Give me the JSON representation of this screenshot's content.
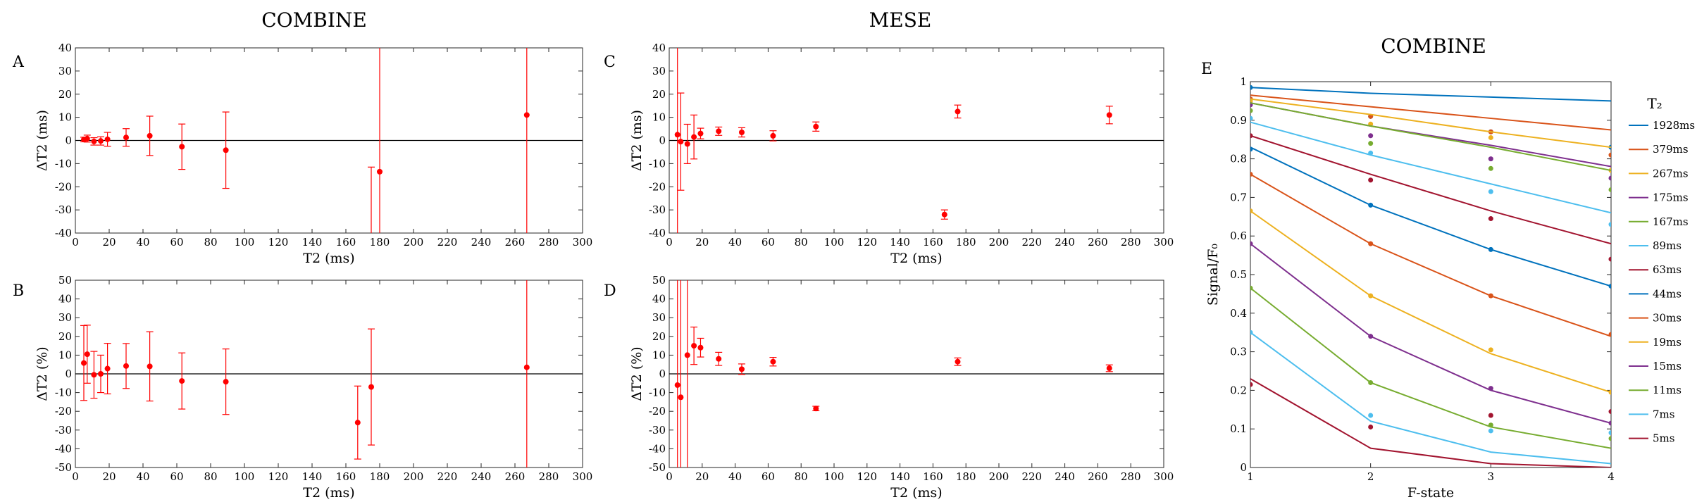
{
  "titles": {
    "left": "COMBINE",
    "middle": "MESE",
    "right": "COMBINE"
  },
  "chart_data": [
    {
      "id": "A",
      "letter": "A",
      "type": "scatter",
      "title": "",
      "xlabel": "T2 (ms)",
      "ylabel": "ΔT2 (ms)",
      "xlim": [
        0,
        300
      ],
      "ylim": [
        -40,
        40
      ],
      "xticks": [
        0,
        20,
        40,
        60,
        80,
        100,
        120,
        140,
        160,
        180,
        200,
        220,
        240,
        260,
        280,
        300
      ],
      "yticks": [
        -40,
        -30,
        -20,
        -10,
        0,
        10,
        20,
        30,
        40
      ],
      "zero_line": true,
      "grid": false,
      "color": "#ff0000",
      "points": [
        {
          "x": 5,
          "y": 0.4,
          "err": 1.0
        },
        {
          "x": 7,
          "y": 0.8,
          "err": 1.5
        },
        {
          "x": 11,
          "y": -0.4,
          "err": 1.6
        },
        {
          "x": 15,
          "y": -0.2,
          "err": 1.8
        },
        {
          "x": 19,
          "y": 0.5,
          "err": 3.0
        },
        {
          "x": 30,
          "y": 1.3,
          "err": 3.8
        },
        {
          "x": 44,
          "y": 2.0,
          "err": 8.5
        },
        {
          "x": 63,
          "y": -2.7,
          "err": 9.8
        },
        {
          "x": 89,
          "y": -4.2,
          "err": 16.5
        },
        {
          "x": 175,
          "y": null,
          "err_low": -40,
          "err_high": -11.5
        },
        {
          "x": 180,
          "y": -13.5,
          "err_low": -40,
          "err_high": 40
        },
        {
          "x": 267,
          "y": 11.0,
          "err_low": -40,
          "err_high": 40
        }
      ]
    },
    {
      "id": "B",
      "letter": "B",
      "type": "scatter",
      "title": "",
      "xlabel": "T2 (ms)",
      "ylabel": "ΔT2 (%)",
      "xlim": [
        0,
        300
      ],
      "ylim": [
        -50,
        50
      ],
      "xticks": [
        0,
        20,
        40,
        60,
        80,
        100,
        120,
        140,
        160,
        180,
        200,
        220,
        240,
        260,
        280,
        300
      ],
      "yticks": [
        -50,
        -40,
        -30,
        -20,
        -10,
        0,
        10,
        20,
        30,
        40,
        50
      ],
      "zero_line": true,
      "grid": false,
      "color": "#ff0000",
      "points": [
        {
          "x": 5,
          "y": 5.8,
          "err": 20.0
        },
        {
          "x": 7,
          "y": 10.5,
          "err": 15.5
        },
        {
          "x": 11,
          "y": -0.5,
          "err": 12.5
        },
        {
          "x": 15,
          "y": 0.0,
          "err": 10.0
        },
        {
          "x": 19,
          "y": 2.8,
          "err": 13.5
        },
        {
          "x": 30,
          "y": 4.2,
          "err": 12.0
        },
        {
          "x": 44,
          "y": 4.0,
          "err": 18.5
        },
        {
          "x": 63,
          "y": -3.8,
          "err": 15.0
        },
        {
          "x": 89,
          "y": -4.2,
          "err": 17.5
        },
        {
          "x": 167,
          "y": -26.0,
          "err": 19.5
        },
        {
          "x": 175,
          "y": -7.0,
          "err": 31.0
        },
        {
          "x": 267,
          "y": 3.5,
          "err_low": -50,
          "err_high": 50
        }
      ]
    },
    {
      "id": "C",
      "letter": "C",
      "type": "scatter",
      "title": "",
      "xlabel": "T2 (ms)",
      "ylabel": "ΔT2 (ms)",
      "xlim": [
        0,
        300
      ],
      "ylim": [
        -40,
        40
      ],
      "xticks": [
        0,
        20,
        40,
        60,
        80,
        100,
        120,
        140,
        160,
        180,
        200,
        220,
        240,
        260,
        280,
        300
      ],
      "yticks": [
        -40,
        -30,
        -20,
        -10,
        0,
        10,
        20,
        30,
        40
      ],
      "zero_line": true,
      "grid": false,
      "color": "#ff0000",
      "points": [
        {
          "x": 5,
          "y": 2.5,
          "err_low": -40,
          "err_high": 40
        },
        {
          "x": 7,
          "y": -0.5,
          "err": 21.0
        },
        {
          "x": 11,
          "y": -1.5,
          "err": 8.5
        },
        {
          "x": 15,
          "y": 1.5,
          "err": 9.5
        },
        {
          "x": 19,
          "y": 3.0,
          "err": 2.3
        },
        {
          "x": 30,
          "y": 4.0,
          "err": 1.8
        },
        {
          "x": 44,
          "y": 3.5,
          "err": 2.0
        },
        {
          "x": 63,
          "y": 2.0,
          "err": 2.2
        },
        {
          "x": 89,
          "y": 6.0,
          "err": 2.0
        },
        {
          "x": 167,
          "y": -32.0,
          "err": 2.0
        },
        {
          "x": 175,
          "y": 12.5,
          "err": 2.8
        },
        {
          "x": 267,
          "y": 11.0,
          "err": 3.8
        }
      ]
    },
    {
      "id": "D",
      "letter": "D",
      "type": "scatter",
      "title": "",
      "xlabel": "T2 (ms)",
      "ylabel": "ΔT2 (%)",
      "xlim": [
        0,
        300
      ],
      "ylim": [
        -50,
        50
      ],
      "xticks": [
        0,
        20,
        40,
        60,
        80,
        100,
        120,
        140,
        160,
        180,
        200,
        220,
        240,
        260,
        280,
        300
      ],
      "yticks": [
        -50,
        -40,
        -30,
        -20,
        -10,
        0,
        10,
        20,
        30,
        40,
        50
      ],
      "zero_line": true,
      "grid": false,
      "color": "#ff0000",
      "points": [
        {
          "x": 5,
          "y": -6.0,
          "err_low": -50,
          "err_high": 50
        },
        {
          "x": 7,
          "y": -12.5,
          "err_low": -50,
          "err_high": 50
        },
        {
          "x": 11,
          "y": 10.0,
          "err_low": -50,
          "err_high": 50
        },
        {
          "x": 15,
          "y": 15.0,
          "err": 10.0
        },
        {
          "x": 19,
          "y": 14.0,
          "err": 5.0
        },
        {
          "x": 30,
          "y": 8.0,
          "err": 3.5
        },
        {
          "x": 44,
          "y": 2.5,
          "err": 2.8
        },
        {
          "x": 63,
          "y": 6.5,
          "err": 2.3
        },
        {
          "x": 89,
          "y": -18.5,
          "err": 1.2
        },
        {
          "x": 175,
          "y": 6.5,
          "err": 2.0
        },
        {
          "x": 267,
          "y": 3.0,
          "err": 1.8
        }
      ]
    },
    {
      "id": "E",
      "letter": "E",
      "type": "line",
      "title": "",
      "xlabel": "F-state",
      "ylabel": "Signal/F₀",
      "xlim": [
        1,
        4
      ],
      "ylim": [
        0,
        1
      ],
      "xticks": [
        1,
        2,
        3,
        4
      ],
      "yticks": [
        0,
        0.1,
        0.2,
        0.3,
        0.4,
        0.5,
        0.6,
        0.7,
        0.8,
        0.9,
        1
      ],
      "legend_title": "T₂",
      "legend_position": "outside-right",
      "x": [
        1,
        2,
        3,
        4
      ],
      "series": [
        {
          "name": "1928ms",
          "color": "#0072bd",
          "line": [
            0.985,
            0.97,
            0.96,
            0.95
          ],
          "points": [
            0.985,
            0.91,
            0.87,
            0.83
          ]
        },
        {
          "name": "379ms",
          "color": "#d95319",
          "line": [
            0.965,
            0.935,
            0.905,
            0.875
          ],
          "points": [
            0.955,
            0.91,
            0.87,
            0.81
          ]
        },
        {
          "name": "267ms",
          "color": "#edb120",
          "line": [
            0.955,
            0.915,
            0.87,
            0.83
          ],
          "points": [
            0.95,
            0.89,
            0.855,
            0.77
          ]
        },
        {
          "name": "175ms",
          "color": "#7e2f8e",
          "line": [
            0.945,
            0.885,
            0.835,
            0.78
          ],
          "points": [
            0.94,
            0.86,
            0.8,
            0.75
          ]
        },
        {
          "name": "167ms",
          "color": "#77ac30",
          "line": [
            0.945,
            0.885,
            0.83,
            0.77
          ],
          "points": [
            0.925,
            0.84,
            0.775,
            0.72
          ]
        },
        {
          "name": "89ms",
          "color": "#4dbeee",
          "line": [
            0.895,
            0.81,
            0.735,
            0.66
          ],
          "points": [
            0.905,
            0.815,
            0.715,
            0.63
          ]
        },
        {
          "name": "63ms",
          "color": "#a2142f",
          "line": [
            0.86,
            0.76,
            0.665,
            0.58
          ],
          "points": [
            0.86,
            0.745,
            0.645,
            0.54
          ]
        },
        {
          "name": "44ms",
          "color": "#0072bd",
          "line": [
            0.83,
            0.68,
            0.565,
            0.47
          ],
          "points": [
            0.825,
            0.68,
            0.565,
            0.47
          ]
        },
        {
          "name": "30ms",
          "color": "#d95319",
          "line": [
            0.76,
            0.58,
            0.445,
            0.34
          ],
          "points": [
            0.76,
            0.58,
            0.445,
            0.345
          ]
        },
        {
          "name": "19ms",
          "color": "#edb120",
          "line": [
            0.665,
            0.445,
            0.295,
            0.195
          ],
          "points": [
            0.665,
            0.445,
            0.305,
            0.195
          ]
        },
        {
          "name": "15ms",
          "color": "#7e2f8e",
          "line": [
            0.58,
            0.34,
            0.2,
            0.115
          ],
          "points": [
            0.58,
            0.34,
            0.205,
            0.115
          ]
        },
        {
          "name": "11ms",
          "color": "#77ac30",
          "line": [
            0.465,
            0.22,
            0.105,
            0.05
          ],
          "points": [
            0.465,
            0.22,
            0.11,
            0.075
          ]
        },
        {
          "name": "7ms",
          "color": "#4dbeee",
          "line": [
            0.35,
            0.12,
            0.04,
            0.01
          ],
          "points": [
            0.35,
            0.135,
            0.095,
            0.09
          ]
        },
        {
          "name": "5ms",
          "color": "#a2142f",
          "line": [
            0.23,
            0.05,
            0.01,
            0.0
          ],
          "points": [
            0.215,
            0.105,
            0.135,
            0.145
          ]
        }
      ]
    }
  ]
}
